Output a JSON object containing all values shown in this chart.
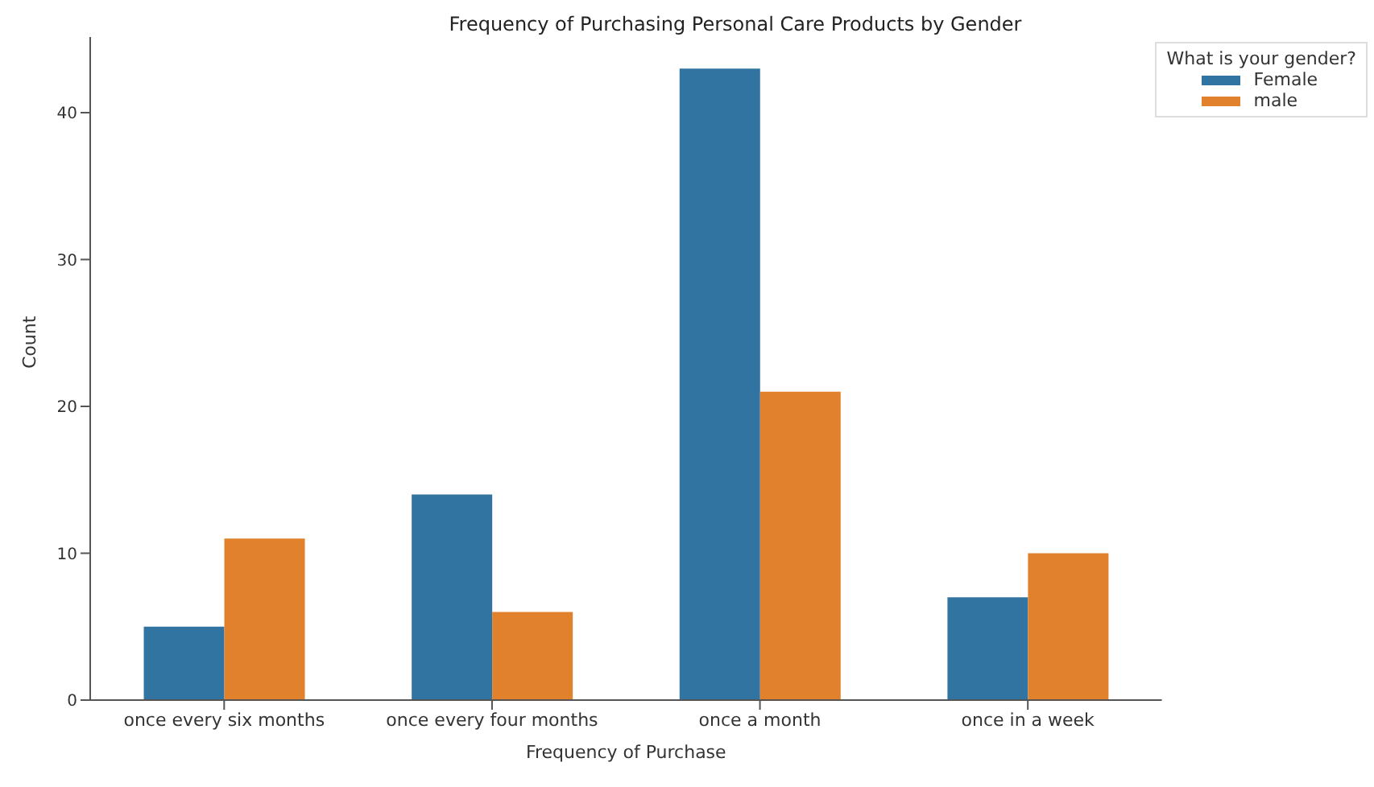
{
  "chart_data": {
    "type": "bar",
    "title": "Frequency of Purchasing Personal Care Products by Gender",
    "xlabel": "Frequency of Purchase",
    "ylabel": "Count",
    "legend_title": "What is your gender?",
    "categories": [
      "once every six months",
      "once every four months",
      "once a month",
      "once in a week"
    ],
    "series": [
      {
        "name": "Female",
        "color": "#3274a1",
        "values": [
          5,
          14,
          43,
          7
        ]
      },
      {
        "name": "male",
        "color": "#e1812c",
        "values": [
          11,
          6,
          21,
          10
        ]
      }
    ],
    "ylim": [
      0,
      45.15
    ],
    "yticks": [
      0,
      10,
      20,
      30,
      40
    ],
    "legend": "top right",
    "grid": false
  }
}
